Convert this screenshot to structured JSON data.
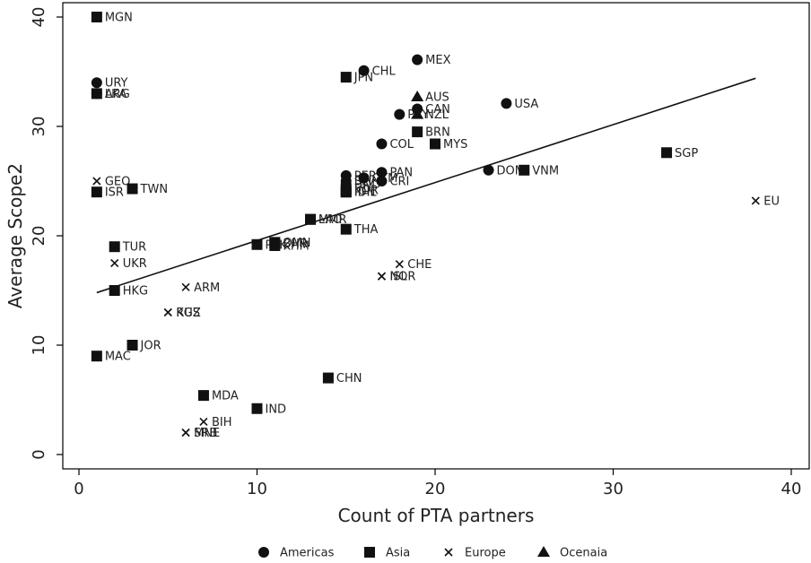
{
  "chart_data": {
    "type": "scatter",
    "xlabel": "Count of PTA partners",
    "ylabel": "Average Scope2",
    "xlim": [
      0,
      40
    ],
    "ylim": [
      0,
      40
    ],
    "xticks": [
      0,
      10,
      20,
      30,
      40
    ],
    "yticks": [
      0,
      10,
      20,
      30,
      40
    ],
    "grid": false,
    "legend_position": "bottom",
    "legend": [
      {
        "name": "Americas",
        "marker": "circle"
      },
      {
        "name": "Asia",
        "marker": "square"
      },
      {
        "name": "Europe",
        "marker": "x"
      },
      {
        "name": "Ocenaia",
        "marker": "triangle"
      }
    ],
    "fit_line": {
      "x1": 1,
      "y1": 14.8,
      "x2": 38,
      "y2": 34.4
    },
    "points": [
      {
        "label": "MGN",
        "x": 1,
        "y": 40,
        "group": "Asia"
      },
      {
        "label": "URY",
        "x": 1,
        "y": 34,
        "group": "Americas"
      },
      {
        "label": "ARG",
        "x": 1,
        "y": 33,
        "group": "Americas"
      },
      {
        "label": "LKA",
        "x": 1,
        "y": 33,
        "group": "Asia"
      },
      {
        "label": "GEO",
        "x": 1,
        "y": 25,
        "group": "Europe"
      },
      {
        "label": "ISR",
        "x": 1,
        "y": 24,
        "group": "Asia"
      },
      {
        "label": "MAC",
        "x": 1,
        "y": 9,
        "group": "Asia"
      },
      {
        "label": "TUR",
        "x": 2,
        "y": 19,
        "group": "Asia"
      },
      {
        "label": "UKR",
        "x": 2,
        "y": 17.5,
        "group": "Europe"
      },
      {
        "label": "HKG",
        "x": 2,
        "y": 15,
        "group": "Asia"
      },
      {
        "label": "TWN",
        "x": 3,
        "y": 24.3,
        "group": "Asia"
      },
      {
        "label": "JOR",
        "x": 3,
        "y": 10,
        "group": "Asia"
      },
      {
        "label": "RUS",
        "x": 5,
        "y": 13,
        "group": "Europe"
      },
      {
        "label": "KGZ",
        "x": 5,
        "y": 13,
        "group": "Europe"
      },
      {
        "label": "ARM",
        "x": 6,
        "y": 15.3,
        "group": "Europe"
      },
      {
        "label": "MNE",
        "x": 6,
        "y": 2,
        "group": "Europe"
      },
      {
        "label": "SRB",
        "x": 6,
        "y": 2,
        "group": "Europe"
      },
      {
        "label": "BIH",
        "x": 7,
        "y": 3,
        "group": "Europe"
      },
      {
        "label": "MDA",
        "x": 7,
        "y": 5.4,
        "group": "Asia"
      },
      {
        "label": "PAK",
        "x": 10,
        "y": 19.2,
        "group": "Asia"
      },
      {
        "label": "IND",
        "x": 10,
        "y": 4.2,
        "group": "Asia"
      },
      {
        "label": "BHR",
        "x": 11,
        "y": 19.3,
        "group": "Asia"
      },
      {
        "label": "OMN",
        "x": 11,
        "y": 19.4,
        "group": "Asia"
      },
      {
        "label": "KHM",
        "x": 11,
        "y": 19.1,
        "group": "Asia"
      },
      {
        "label": "LAO",
        "x": 13,
        "y": 21.5,
        "group": "Asia"
      },
      {
        "label": "MMR",
        "x": 13,
        "y": 21.5,
        "group": "Asia"
      },
      {
        "label": "CHN",
        "x": 14,
        "y": 7,
        "group": "Asia"
      },
      {
        "label": "JPN",
        "x": 15,
        "y": 34.5,
        "group": "Asia"
      },
      {
        "label": "THA",
        "x": 15,
        "y": 20.6,
        "group": "Asia"
      },
      {
        "label": "PHL",
        "x": 15,
        "y": 24,
        "group": "Asia"
      },
      {
        "label": "IDN",
        "x": 15,
        "y": 24,
        "group": "Asia"
      },
      {
        "label": "PER",
        "x": 15,
        "y": 25.5,
        "group": "Americas"
      },
      {
        "label": "HND",
        "x": 15,
        "y": 24.7,
        "group": "Americas"
      },
      {
        "label": "KOR",
        "x": 15,
        "y": 24.2,
        "group": "Asia"
      },
      {
        "label": "SLV",
        "x": 15,
        "y": 25,
        "group": "Americas"
      },
      {
        "label": "GTM",
        "x": 16,
        "y": 25.3,
        "group": "Americas"
      },
      {
        "label": "CHL",
        "x": 16,
        "y": 35.1,
        "group": "Americas"
      },
      {
        "label": "COL",
        "x": 17,
        "y": 28.4,
        "group": "Americas"
      },
      {
        "label": "PAN",
        "x": 17,
        "y": 25.8,
        "group": "Americas"
      },
      {
        "label": "CRI",
        "x": 17,
        "y": 25,
        "group": "Americas"
      },
      {
        "label": "PRY",
        "x": 18,
        "y": 31.1,
        "group": "Americas"
      },
      {
        "label": "ISL",
        "x": 17,
        "y": 16.3,
        "group": "Europe"
      },
      {
        "label": "NOR",
        "x": 17,
        "y": 16.3,
        "group": "Europe"
      },
      {
        "label": "CHE",
        "x": 18,
        "y": 17.4,
        "group": "Europe"
      },
      {
        "label": "MEX",
        "x": 19,
        "y": 36.1,
        "group": "Americas"
      },
      {
        "label": "AUS",
        "x": 19,
        "y": 32.7,
        "group": "Ocenaia"
      },
      {
        "label": "CAN",
        "x": 19,
        "y": 31.6,
        "group": "Americas"
      },
      {
        "label": "NZL",
        "x": 19,
        "y": 31.1,
        "group": "Ocenaia"
      },
      {
        "label": "BRN",
        "x": 19,
        "y": 29.5,
        "group": "Asia"
      },
      {
        "label": "MYS",
        "x": 20,
        "y": 28.4,
        "group": "Asia"
      },
      {
        "label": "DOM",
        "x": 23,
        "y": 26,
        "group": "Americas"
      },
      {
        "label": "USA",
        "x": 24,
        "y": 32.1,
        "group": "Americas"
      },
      {
        "label": "VNM",
        "x": 25,
        "y": 26,
        "group": "Asia"
      },
      {
        "label": "SGP",
        "x": 33,
        "y": 27.6,
        "group": "Asia"
      },
      {
        "label": "EU",
        "x": 38,
        "y": 23.2,
        "group": "Europe"
      }
    ]
  }
}
